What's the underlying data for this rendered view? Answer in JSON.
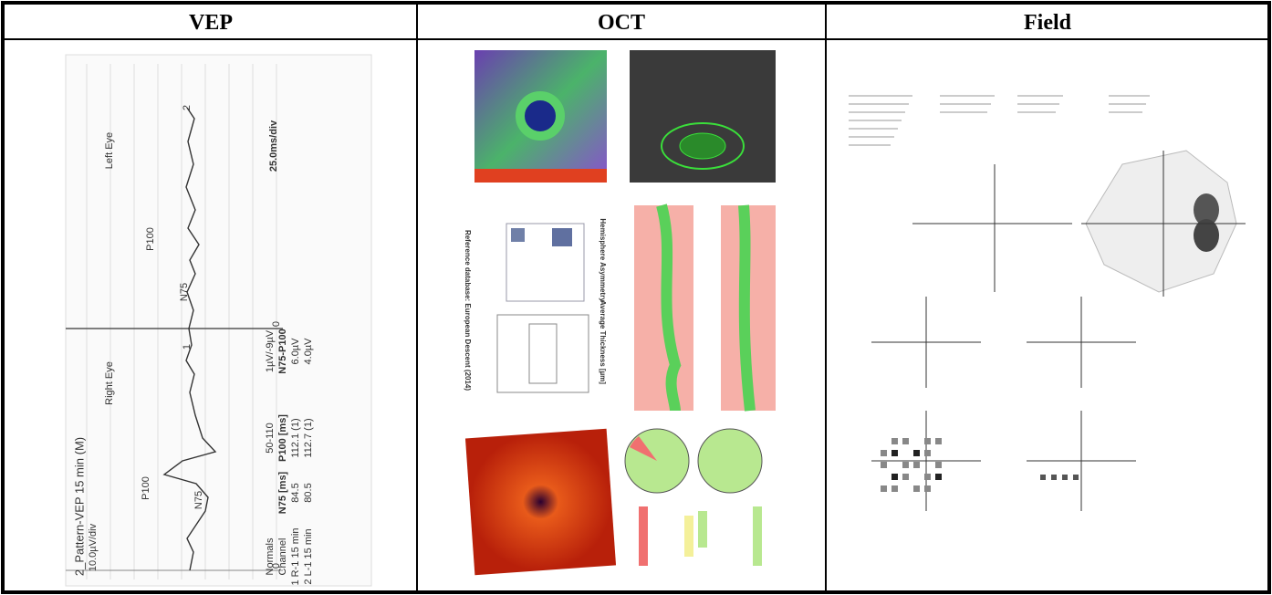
{
  "header": {
    "cells": [
      "VEP",
      "OCT",
      "Field"
    ]
  },
  "vep": {
    "labels": [
      "Left Eye",
      "25.0ms/div",
      "Right Eye",
      "2_Pattern-VEP 15 min (M)",
      "10.0µV/div",
      "1µV/-9µV",
      "N75-P100",
      "6.0µV",
      "4.0µV",
      "50-110",
      "P100 [ms]",
      "112.1 (1)",
      "112.7 (1)",
      "N75 [ms]",
      "84.5",
      "80.5",
      "Normals",
      "Channel",
      "1 R-1 15 min",
      "2 L-1 15 min",
      "P100",
      "N75",
      "P100",
      "N75",
      "2",
      "1",
      "0",
      "0"
    ]
  },
  "oct": {
    "labels": [
      "Reference database: European Descent (2014)",
      "Average Thickness [µm]",
      "Hemisphere Asymmetry"
    ]
  }
}
